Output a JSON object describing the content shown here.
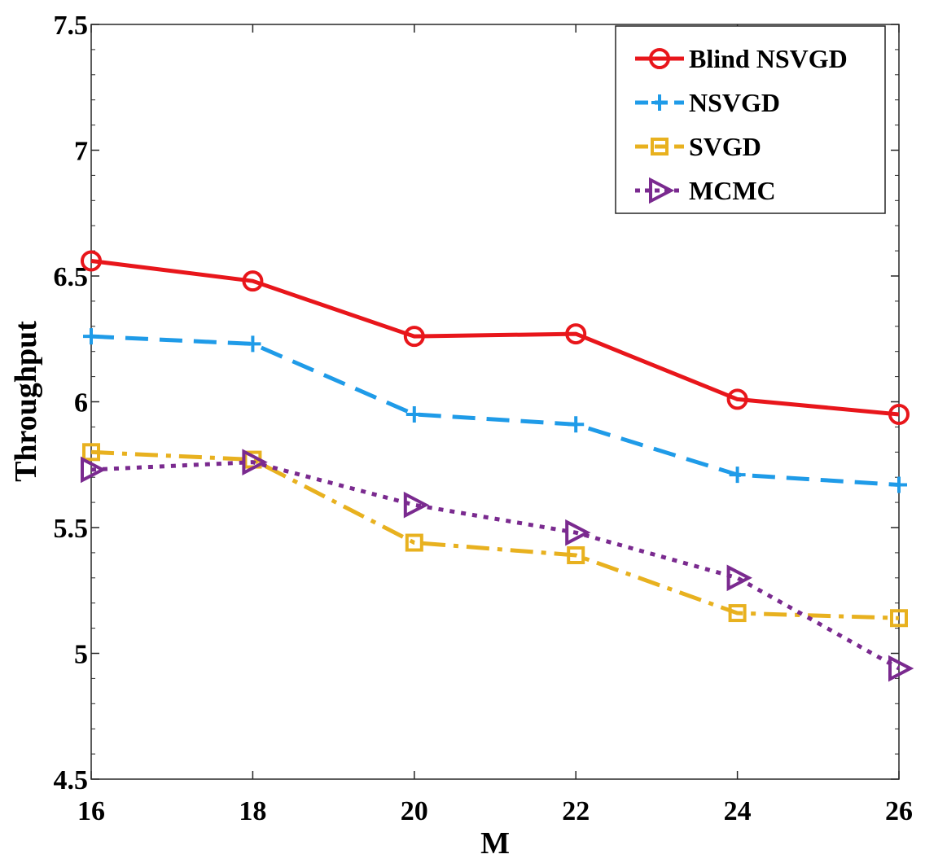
{
  "chart_data": {
    "type": "line",
    "title": "",
    "xlabel": "M",
    "ylabel": "Throughput",
    "x": [
      16,
      18,
      20,
      22,
      24,
      26
    ],
    "xlim": [
      16,
      26
    ],
    "ylim": [
      4.5,
      7.5
    ],
    "x_ticks": [
      "16",
      "18",
      "20",
      "22",
      "24",
      "26"
    ],
    "y_ticks": [
      "4.5",
      "5",
      "5.5",
      "6",
      "6.5",
      "7",
      "7.5"
    ],
    "grid": false,
    "legend_position": "top-right",
    "series": [
      {
        "name": "Blind NSVGD",
        "values": [
          6.56,
          6.48,
          6.26,
          6.27,
          6.01,
          5.95
        ],
        "color": "#e8161b",
        "dash": "solid",
        "marker": "circle"
      },
      {
        "name": "NSVGD",
        "values": [
          6.26,
          6.23,
          5.95,
          5.91,
          5.71,
          5.67
        ],
        "color": "#1f9be8",
        "dash": "dashed",
        "marker": "plus"
      },
      {
        "name": "SVGD",
        "values": [
          5.8,
          5.77,
          5.44,
          5.39,
          5.16,
          5.14
        ],
        "color": "#e8b11f",
        "dash": "dashdot",
        "marker": "square"
      },
      {
        "name": "MCMC",
        "values": [
          5.73,
          5.76,
          5.59,
          5.48,
          5.3,
          4.94
        ],
        "color": "#7a2a8f",
        "dash": "dotted",
        "marker": "triangle-right"
      }
    ]
  }
}
